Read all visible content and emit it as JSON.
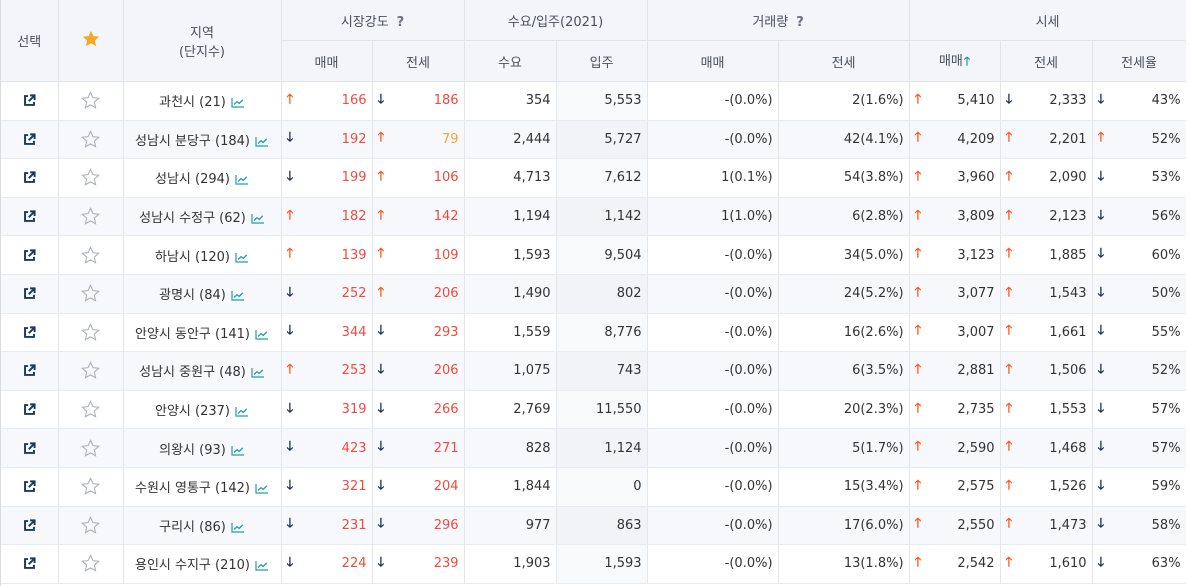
{
  "header": {
    "select": "선택",
    "region_line1": "지역",
    "region_line2": "(단지수)",
    "market": "시장강도",
    "supply": "수요/입주(2021)",
    "volume": "거래량",
    "price": "시세",
    "help": "?",
    "sub": {
      "market_sale": "매매",
      "market_jeonse": "전세",
      "demand": "수요",
      "moveins": "입주",
      "vol_sale": "매매",
      "vol_jeonse": "전세",
      "price_sale": "매매",
      "price_jeonse": "전세",
      "jeonse_ratio": "전세율"
    }
  },
  "colors": {
    "up": "#ff5a1f",
    "down": "#1f3050",
    "red": "#ef4b3e",
    "orange": "#f0a63c",
    "trend": "#20a0a0"
  },
  "rows": [
    {
      "region": "과천시 (21)",
      "ms_dir": "up",
      "ms": "166",
      "ms_c": "red",
      "mj_dir": "down",
      "mj": "186",
      "mj_c": "red",
      "demand": "354",
      "movein": "5,553",
      "vs": "-(0.0%)",
      "vj": "2(1.6%)",
      "ps_dir": "up",
      "ps": "5,410",
      "pj_dir": "down",
      "pj": "2,333",
      "jr_dir": "down",
      "jr": "43%"
    },
    {
      "region": "성남시 분당구 (184)",
      "ms_dir": "down",
      "ms": "192",
      "ms_c": "red",
      "mj_dir": "up",
      "mj": "79",
      "mj_c": "orange",
      "demand": "2,444",
      "movein": "5,727",
      "vs": "-(0.0%)",
      "vj": "42(4.1%)",
      "ps_dir": "up",
      "ps": "4,209",
      "pj_dir": "up",
      "pj": "2,201",
      "jr_dir": "up",
      "jr": "52%"
    },
    {
      "region": "성남시 (294)",
      "ms_dir": "down",
      "ms": "199",
      "ms_c": "red",
      "mj_dir": "up",
      "mj": "106",
      "mj_c": "red",
      "demand": "4,713",
      "movein": "7,612",
      "vs": "1(0.1%)",
      "vj": "54(3.8%)",
      "ps_dir": "up",
      "ps": "3,960",
      "pj_dir": "up",
      "pj": "2,090",
      "jr_dir": "down",
      "jr": "53%"
    },
    {
      "region": "성남시 수정구 (62)",
      "ms_dir": "up",
      "ms": "182",
      "ms_c": "red",
      "mj_dir": "up",
      "mj": "142",
      "mj_c": "red",
      "demand": "1,194",
      "movein": "1,142",
      "vs": "1(1.0%)",
      "vj": "6(2.8%)",
      "ps_dir": "up",
      "ps": "3,809",
      "pj_dir": "up",
      "pj": "2,123",
      "jr_dir": "down",
      "jr": "56%"
    },
    {
      "region": "하남시 (120)",
      "ms_dir": "up",
      "ms": "139",
      "ms_c": "red",
      "mj_dir": "up",
      "mj": "109",
      "mj_c": "red",
      "demand": "1,593",
      "movein": "9,504",
      "vs": "-(0.0%)",
      "vj": "34(5.0%)",
      "ps_dir": "up",
      "ps": "3,123",
      "pj_dir": "up",
      "pj": "1,885",
      "jr_dir": "down",
      "jr": "60%"
    },
    {
      "region": "광명시 (84)",
      "ms_dir": "down",
      "ms": "252",
      "ms_c": "red",
      "mj_dir": "up",
      "mj": "206",
      "mj_c": "red",
      "demand": "1,490",
      "movein": "802",
      "vs": "-(0.0%)",
      "vj": "24(5.2%)",
      "ps_dir": "up",
      "ps": "3,077",
      "pj_dir": "up",
      "pj": "1,543",
      "jr_dir": "down",
      "jr": "50%"
    },
    {
      "region": "안양시 동안구 (141)",
      "ms_dir": "down",
      "ms": "344",
      "ms_c": "red",
      "mj_dir": "down",
      "mj": "293",
      "mj_c": "red",
      "demand": "1,559",
      "movein": "8,776",
      "vs": "-(0.0%)",
      "vj": "16(2.6%)",
      "ps_dir": "up",
      "ps": "3,007",
      "pj_dir": "up",
      "pj": "1,661",
      "jr_dir": "down",
      "jr": "55%"
    },
    {
      "region": "성남시 중원구 (48)",
      "ms_dir": "up",
      "ms": "253",
      "ms_c": "red",
      "mj_dir": "down",
      "mj": "206",
      "mj_c": "red",
      "demand": "1,075",
      "movein": "743",
      "vs": "-(0.0%)",
      "vj": "6(3.5%)",
      "ps_dir": "up",
      "ps": "2,881",
      "pj_dir": "up",
      "pj": "1,506",
      "jr_dir": "down",
      "jr": "52%"
    },
    {
      "region": "안양시 (237)",
      "ms_dir": "down",
      "ms": "319",
      "ms_c": "red",
      "mj_dir": "down",
      "mj": "266",
      "mj_c": "red",
      "demand": "2,769",
      "movein": "11,550",
      "vs": "-(0.0%)",
      "vj": "20(2.3%)",
      "ps_dir": "up",
      "ps": "2,735",
      "pj_dir": "up",
      "pj": "1,553",
      "jr_dir": "down",
      "jr": "57%"
    },
    {
      "region": "의왕시 (93)",
      "ms_dir": "down",
      "ms": "423",
      "ms_c": "red",
      "mj_dir": "down",
      "mj": "271",
      "mj_c": "red",
      "demand": "828",
      "movein": "1,124",
      "vs": "-(0.0%)",
      "vj": "5(1.7%)",
      "ps_dir": "up",
      "ps": "2,590",
      "pj_dir": "up",
      "pj": "1,468",
      "jr_dir": "down",
      "jr": "57%"
    },
    {
      "region": "수원시 영통구 (142)",
      "ms_dir": "down",
      "ms": "321",
      "ms_c": "red",
      "mj_dir": "down",
      "mj": "204",
      "mj_c": "red",
      "demand": "1,844",
      "movein": "0",
      "vs": "-(0.0%)",
      "vj": "15(3.4%)",
      "ps_dir": "up",
      "ps": "2,575",
      "pj_dir": "up",
      "pj": "1,526",
      "jr_dir": "down",
      "jr": "59%"
    },
    {
      "region": "구리시 (86)",
      "ms_dir": "down",
      "ms": "231",
      "ms_c": "red",
      "mj_dir": "down",
      "mj": "296",
      "mj_c": "red",
      "demand": "977",
      "movein": "863",
      "vs": "-(0.0%)",
      "vj": "17(6.0%)",
      "ps_dir": "up",
      "ps": "2,550",
      "pj_dir": "up",
      "pj": "1,473",
      "jr_dir": "down",
      "jr": "58%"
    },
    {
      "region": "용인시 수지구 (210)",
      "ms_dir": "down",
      "ms": "224",
      "ms_c": "red",
      "mj_dir": "down",
      "mj": "239",
      "mj_c": "red",
      "demand": "1,903",
      "movein": "1,593",
      "vs": "-(0.0%)",
      "vj": "13(1.8%)",
      "ps_dir": "up",
      "ps": "2,542",
      "pj_dir": "up",
      "pj": "1,610",
      "jr_dir": "down",
      "jr": "63%"
    }
  ]
}
